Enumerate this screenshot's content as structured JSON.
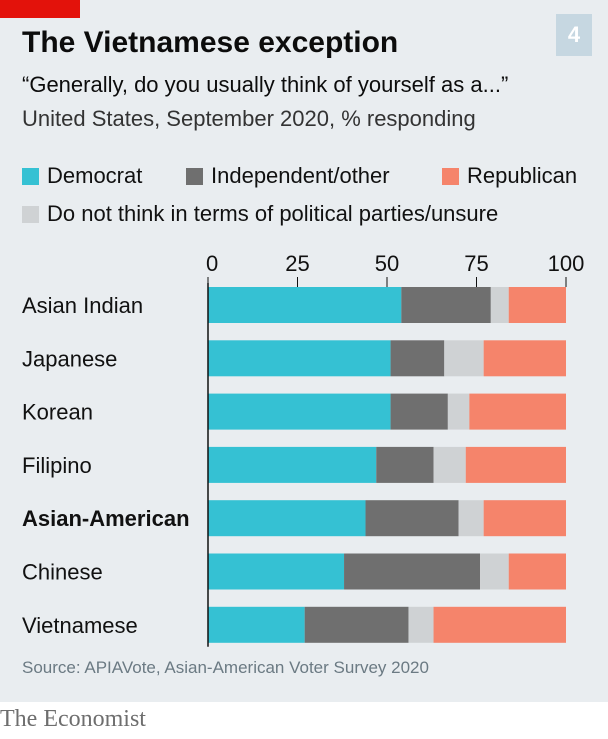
{
  "header": {
    "badge": "4",
    "title": "The Vietnamese exception",
    "subtitle": "“Generally, do you usually think of yourself as a...”",
    "subtitle2": "United States, September 2020, % responding"
  },
  "colors": {
    "democrat": "#35c1d3",
    "independent": "#6f6f6f",
    "republican": "#f5846b",
    "unsure": "#cfd2d4"
  },
  "source": "Source: APIAVote, Asian-American Voter Survey 2020",
  "brand": "The Economist",
  "chart_data": {
    "type": "bar",
    "orientation": "horizontal",
    "stacked": true,
    "xlim": [
      0,
      100
    ],
    "ticks": [
      "0",
      "25",
      "50",
      "75",
      "100"
    ],
    "tick_values": [
      0,
      25,
      50,
      75,
      100
    ],
    "categories": [
      "Asian Indian",
      "Japanese",
      "Korean",
      "Filipino",
      "Asian-American",
      "Chinese",
      "Vietnamese"
    ],
    "bold_category": "Asian-American",
    "series": [
      {
        "name": "Democrat",
        "color": "#35c1d3",
        "values": [
          54,
          51,
          51,
          47,
          44,
          38,
          27
        ]
      },
      {
        "name": "Independent/other",
        "color": "#6f6f6f",
        "values": [
          25,
          15,
          16,
          16,
          26,
          38,
          29
        ]
      },
      {
        "name": "Do not think in terms of political parties/unsure",
        "color": "#cfd2d4",
        "values": [
          5,
          11,
          6,
          9,
          7,
          8,
          7
        ]
      },
      {
        "name": "Republican",
        "color": "#f5846b",
        "values": [
          16,
          23,
          27,
          28,
          23,
          16,
          37
        ]
      }
    ]
  }
}
